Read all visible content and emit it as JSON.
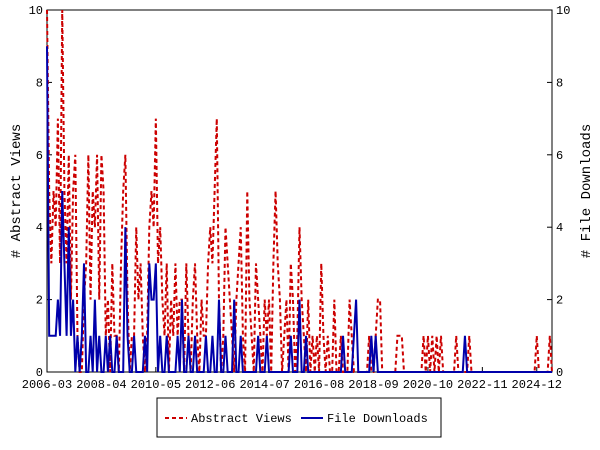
{
  "chart_data": {
    "type": "line",
    "y_label": "# Abstract Views",
    "y2_label": "# File Downloads",
    "x": [
      "2006-03",
      "2006-04",
      "2006-05",
      "2006-06",
      "2006-07",
      "2006-08",
      "2006-09",
      "2006-10",
      "2006-11",
      "2006-12",
      "2007-01",
      "2007-02",
      "2007-03",
      "2007-04",
      "2007-05",
      "2007-06",
      "2007-07",
      "2007-08",
      "2007-09",
      "2007-10",
      "2007-11",
      "2007-12",
      "2008-01",
      "2008-02",
      "2008-03",
      "2008-04",
      "2008-05",
      "2008-06",
      "2008-07",
      "2008-08",
      "2008-09",
      "2008-10",
      "2008-11",
      "2008-12",
      "2009-01",
      "2009-02",
      "2009-03",
      "2009-04",
      "2009-05",
      "2009-06",
      "2009-07",
      "2009-08",
      "2009-09",
      "2009-10",
      "2009-11",
      "2009-12",
      "2010-01",
      "2010-02",
      "2010-03",
      "2010-04",
      "2010-05",
      "2010-06",
      "2010-07",
      "2010-08",
      "2010-09",
      "2010-10",
      "2010-11",
      "2010-12",
      "2011-01",
      "2011-02",
      "2011-03",
      "2011-04",
      "2011-05",
      "2011-06",
      "2011-07",
      "2011-08",
      "2011-09",
      "2011-10",
      "2011-11",
      "2011-12",
      "2012-01",
      "2012-02",
      "2012-03",
      "2012-04",
      "2012-05",
      "2012-06",
      "2012-07",
      "2012-08",
      "2012-09",
      "2012-10",
      "2012-11",
      "2012-12",
      "2013-01",
      "2013-02",
      "2013-03",
      "2013-04",
      "2013-05",
      "2013-06",
      "2013-07",
      "2013-08",
      "2013-09",
      "2013-10",
      "2013-11",
      "2013-12",
      "2014-01",
      "2014-02",
      "2014-03",
      "2014-04",
      "2014-05",
      "2014-06",
      "2014-07",
      "2014-08",
      "2014-09",
      "2014-10",
      "2014-11",
      "2014-12",
      "2015-01",
      "2015-02",
      "2015-03",
      "2015-04",
      "2015-05",
      "2015-06",
      "2015-07",
      "2015-08",
      "2015-09",
      "2015-10",
      "2015-11",
      "2015-12",
      "2016-01",
      "2016-02",
      "2016-03",
      "2016-04",
      "2016-05",
      "2016-06",
      "2016-07",
      "2016-08",
      "2016-09",
      "2016-10",
      "2016-11",
      "2016-12",
      "2017-01",
      "2017-02",
      "2017-03",
      "2017-04",
      "2017-05",
      "2017-06",
      "2017-07",
      "2017-08",
      "2017-09",
      "2017-10",
      "2017-11",
      "2017-12",
      "2018-01",
      "2018-02",
      "2018-03",
      "2018-04",
      "2018-05",
      "2018-06",
      "2018-07",
      "2018-08",
      "2018-09",
      "2018-10",
      "2018-11",
      "2018-12",
      "2019-01",
      "2019-02",
      "2019-03",
      "2019-04",
      "2019-05",
      "2019-06",
      "2019-07",
      "2019-08",
      "2019-09",
      "2019-10",
      "2019-11",
      "2019-12",
      "2020-01",
      "2020-02",
      "2020-03",
      "2020-04",
      "2020-05",
      "2020-06",
      "2020-07",
      "2020-08",
      "2020-09",
      "2020-10",
      "2020-11",
      "2020-12",
      "2021-01",
      "2021-02",
      "2021-03",
      "2021-04",
      "2021-05",
      "2021-06",
      "2021-07",
      "2021-08",
      "2021-09",
      "2021-10",
      "2021-11",
      "2021-12",
      "2022-01",
      "2022-02",
      "2022-03",
      "2022-04",
      "2022-05",
      "2022-06",
      "2022-07",
      "2022-08",
      "2022-09",
      "2022-10",
      "2022-11",
      "2022-12",
      "2023-01",
      "2023-02",
      "2023-03",
      "2023-04",
      "2023-05",
      "2023-06",
      "2023-07",
      "2023-08",
      "2023-09",
      "2023-10",
      "2023-11",
      "2023-12",
      "2024-01",
      "2024-02",
      "2024-03",
      "2024-04",
      "2024-05",
      "2024-06",
      "2024-07",
      "2024-08",
      "2024-09",
      "2024-10",
      "2024-11",
      "2024-12",
      "2025-01",
      "2025-02",
      "2025-03",
      "2025-04",
      "2025-05",
      "2025-06",
      "2025-07"
    ],
    "xticks": [
      "2006-03",
      "2008-04",
      "2010-05",
      "2012-06",
      "2014-07",
      "2016-08",
      "2018-09",
      "2020-10",
      "2022-11",
      "2024-12"
    ],
    "ylim": [
      0,
      10
    ],
    "yticks": [
      0,
      2,
      4,
      6,
      8,
      10
    ],
    "y2lim": [
      0,
      10
    ],
    "y2ticks": [
      0,
      2,
      4,
      6,
      8,
      10
    ],
    "legend": "bottom",
    "series": [
      {
        "name": "Abstract Views",
        "color": "#cc0000",
        "dash": true,
        "values": [
          10,
          5,
          3,
          5,
          4,
          7,
          3,
          10,
          5,
          3,
          6,
          2,
          5,
          6,
          1,
          0,
          0,
          2,
          3,
          6,
          2,
          5,
          4,
          6,
          2,
          6,
          5,
          1,
          2,
          0,
          3,
          1,
          1,
          0,
          3,
          5,
          6,
          2,
          0,
          1,
          1,
          4,
          2,
          3,
          1,
          0,
          1,
          4,
          5,
          4,
          7,
          3,
          4,
          2,
          1,
          3,
          0,
          2,
          1,
          3,
          1,
          2,
          2,
          0,
          3,
          1,
          0,
          2,
          3,
          1,
          0,
          2,
          1,
          1,
          3,
          4,
          3,
          5,
          7,
          2,
          0,
          1,
          4,
          3,
          2,
          1,
          0,
          2,
          3,
          4,
          1,
          0,
          5,
          2,
          1,
          0,
          3,
          2,
          1,
          0,
          2,
          1,
          2,
          0,
          3,
          5,
          3,
          2,
          0,
          1,
          2,
          0,
          3,
          2,
          0,
          1,
          4,
          2,
          1,
          0,
          2,
          0,
          1,
          0,
          1,
          0,
          3,
          1,
          0,
          1,
          0,
          0,
          2,
          0,
          0,
          1,
          0,
          0,
          0,
          2,
          1,
          0,
          0,
          0,
          0,
          0,
          0,
          0,
          1,
          0,
          0,
          1,
          2,
          2,
          0,
          0,
          0,
          0,
          0,
          0,
          0,
          1,
          1,
          1,
          0,
          0,
          0,
          0,
          0,
          0,
          0,
          0,
          0,
          1,
          0,
          1,
          0,
          1,
          0,
          1,
          0,
          1,
          0,
          0,
          0,
          0,
          0,
          0,
          1,
          0,
          0,
          0,
          0,
          0,
          1,
          0,
          0,
          0,
          0,
          0,
          0,
          0,
          0,
          0,
          0,
          0,
          0,
          0,
          0,
          0,
          0,
          0,
          0,
          0,
          0,
          0,
          0,
          0,
          0,
          0,
          0,
          0,
          0,
          0,
          0,
          1,
          0,
          0,
          0,
          0,
          0,
          1,
          0
        ]
      },
      {
        "name": "File Downloads",
        "color": "#0000aa",
        "dash": false,
        "axis": "y2",
        "values": [
          9,
          1,
          1,
          1,
          1,
          2,
          1,
          5,
          3,
          1,
          4,
          1,
          2,
          0,
          1,
          0,
          1,
          3,
          0,
          0,
          1,
          0,
          2,
          0,
          1,
          0,
          0,
          1,
          0,
          1,
          0,
          0,
          1,
          0,
          0,
          0,
          4,
          1,
          0,
          0,
          1,
          0,
          0,
          0,
          0,
          1,
          0,
          3,
          2,
          2,
          3,
          0,
          1,
          0,
          0,
          1,
          0,
          0,
          0,
          0,
          1,
          0,
          2,
          0,
          0,
          1,
          0,
          0,
          1,
          0,
          0,
          0,
          0,
          1,
          0,
          0,
          1,
          0,
          0,
          2,
          0,
          0,
          1,
          0,
          0,
          0,
          2,
          0,
          0,
          1,
          0,
          0,
          0,
          0,
          0,
          0,
          0,
          1,
          0,
          0,
          0,
          1,
          0,
          0,
          0,
          0,
          0,
          0,
          0,
          0,
          0,
          0,
          1,
          0,
          0,
          0,
          2,
          0,
          0,
          1,
          0,
          0,
          0,
          0,
          0,
          0,
          0,
          0,
          0,
          0,
          0,
          0,
          0,
          0,
          0,
          0,
          1,
          0,
          0,
          0,
          0,
          1,
          2,
          0,
          0,
          0,
          0,
          0,
          0,
          1,
          0,
          1,
          0,
          0,
          0,
          0,
          0,
          0,
          0,
          0,
          0,
          0,
          0,
          0,
          0,
          0,
          0,
          0,
          0,
          0,
          0,
          0,
          0,
          0,
          0,
          0,
          0,
          0,
          0,
          0,
          0,
          0,
          0,
          0,
          0,
          0,
          0,
          0,
          0,
          0,
          0,
          0,
          1,
          0,
          0,
          0,
          0,
          0,
          0,
          0,
          0,
          0,
          0,
          0,
          0,
          0,
          0,
          0,
          0,
          0,
          0,
          0,
          0,
          0,
          0,
          0,
          0,
          0,
          0,
          0,
          0,
          0,
          0,
          0,
          0,
          0,
          0,
          0,
          0,
          0,
          0,
          0,
          0
        ]
      }
    ]
  }
}
